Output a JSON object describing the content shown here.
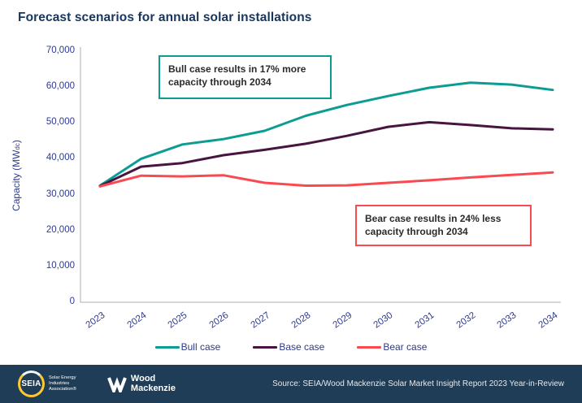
{
  "header": {
    "title": "Forecast scenarios for annual solar installations"
  },
  "chart_data": {
    "type": "line",
    "categories": [
      "2023",
      "2024",
      "2025",
      "2026",
      "2027",
      "2028",
      "2029",
      "2030",
      "2031",
      "2032",
      "2033",
      "2034"
    ],
    "series": [
      {
        "name": "Bull case",
        "color": "#0D9C94",
        "values": [
          32500,
          40000,
          44000,
          45500,
          47800,
          52000,
          55000,
          57500,
          59800,
          61200,
          60700,
          59200
        ]
      },
      {
        "name": "Base case",
        "color": "#471540",
        "values": [
          32400,
          37800,
          38800,
          41000,
          42500,
          44200,
          46400,
          48900,
          50200,
          49400,
          48500,
          48200
        ]
      },
      {
        "name": "Bear case",
        "color": "#FA4A51",
        "values": [
          32300,
          35300,
          35100,
          35400,
          33300,
          32500,
          32600,
          33300,
          34000,
          34800,
          35500,
          36200
        ]
      }
    ],
    "title": "Forecast scenarios for annual solar installations",
    "xlabel": "",
    "ylabel_main": "Capacity (MW",
    "ylabel_sub": "dc",
    "ylabel_close": ")",
    "ylim": [
      0,
      70000
    ],
    "ytick_values": [
      0,
      10000,
      20000,
      30000,
      40000,
      50000,
      60000,
      70000
    ],
    "ytick_labels": [
      "0",
      "10,000",
      "20,000",
      "30,000",
      "40,000",
      "50,000",
      "60,000",
      "70,000"
    ],
    "grid": false,
    "legend_position": "bottom"
  },
  "annotations": {
    "bull": {
      "text": "Bull case results in 17% more capacity through 2034",
      "border_color": "#0D9C94"
    },
    "bear": {
      "text": "Bear case results in 24% less capacity through 2034",
      "border_color": "#FA4A51"
    }
  },
  "footer": {
    "seia_acronym": "SEIA",
    "seia_tagline_lines": [
      "Solar Energy",
      "Industries",
      "Association®"
    ],
    "woodmac_lines": [
      "Wood",
      "Mackenzie"
    ],
    "source": "Source: SEIA/Wood Mackenzie Solar Market Insight Report 2023 Year-in-Review",
    "background": "#1F3D57",
    "accent_yellow": "#FFC82E"
  },
  "colors": {
    "title": "#17365D",
    "axis_text": "#2E3A8C",
    "axis_line": "#BFBFBF"
  }
}
